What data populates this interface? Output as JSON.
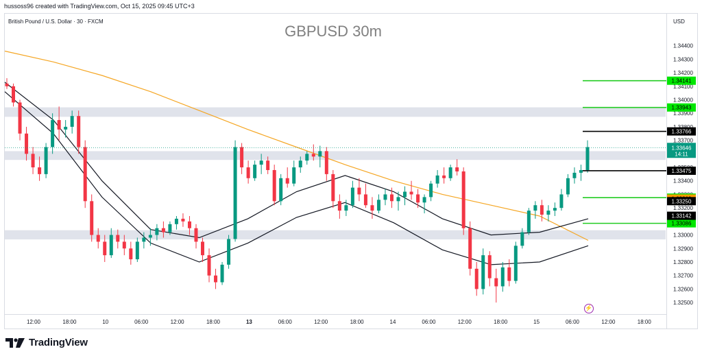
{
  "header": {
    "created_by": "hussoss96 created with TradingView.com, Oct 15, 2025 09:45 UTC+3",
    "symbol": "British Pound / U.S. Dollar · 30 · FXCM",
    "currency": "USD"
  },
  "brand": {
    "name": "TradingView"
  },
  "chart_data": {
    "type": "candlestick",
    "title": "GBPUSD 30m",
    "ylim": [
      1.32455,
      1.34525
    ],
    "y_ticks": [
      "1.34400",
      "1.34300",
      "1.34200",
      "1.34100",
      "1.34000",
      "1.33900",
      "1.33800",
      "1.33700",
      "1.33600",
      "1.33500",
      "1.33400",
      "1.33300",
      "1.33200",
      "1.33100",
      "1.33000",
      "1.32900",
      "1.32800",
      "1.32700",
      "1.32600",
      "1.32500"
    ],
    "x_ticks": [
      {
        "label": "12:00",
        "bold": false
      },
      {
        "label": "18:00",
        "bold": false
      },
      {
        "label": "10",
        "bold": false
      },
      {
        "label": "06:00",
        "bold": false
      },
      {
        "label": "12:00",
        "bold": false
      },
      {
        "label": "18:00",
        "bold": false
      },
      {
        "label": "13",
        "bold": true
      },
      {
        "label": "06:00",
        "bold": false
      },
      {
        "label": "12:00",
        "bold": false
      },
      {
        "label": "18:00",
        "bold": false
      },
      {
        "label": "14",
        "bold": false
      },
      {
        "label": "06:00",
        "bold": false
      },
      {
        "label": "12:00",
        "bold": false
      },
      {
        "label": "18:00",
        "bold": false
      },
      {
        "label": "15",
        "bold": false
      },
      {
        "label": "06:00",
        "bold": false
      },
      {
        "label": "12:00",
        "bold": false
      },
      {
        "label": "18:00",
        "bold": false
      }
    ],
    "candles": [
      [
        1.3412,
        1.3416,
        1.3408,
        1.341
      ],
      [
        1.341,
        1.3412,
        1.3395,
        1.3398
      ],
      [
        1.3398,
        1.34,
        1.337,
        1.3375
      ],
      [
        1.3375,
        1.338,
        1.3355,
        1.336
      ],
      [
        1.336,
        1.3365,
        1.3345,
        1.335
      ],
      [
        1.335,
        1.3358,
        1.334,
        1.3345
      ],
      [
        1.3345,
        1.3368,
        1.3342,
        1.3365
      ],
      [
        1.3365,
        1.339,
        1.336,
        1.3385
      ],
      [
        1.3385,
        1.3395,
        1.337,
        1.3378
      ],
      [
        1.3378,
        1.3385,
        1.3372,
        1.338
      ],
      [
        1.338,
        1.3392,
        1.3375,
        1.3388
      ],
      [
        1.3388,
        1.3392,
        1.336,
        1.3365
      ],
      [
        1.3365,
        1.337,
        1.332,
        1.3325
      ],
      [
        1.3325,
        1.333,
        1.3295,
        1.33
      ],
      [
        1.33,
        1.3305,
        1.329,
        1.3295
      ],
      [
        1.3295,
        1.33,
        1.328,
        1.3285
      ],
      [
        1.3285,
        1.3305,
        1.3283,
        1.33
      ],
      [
        1.33,
        1.3304,
        1.329,
        1.3295
      ],
      [
        1.3295,
        1.33,
        1.3285,
        1.329
      ],
      [
        1.329,
        1.3295,
        1.3278,
        1.3282
      ],
      [
        1.3282,
        1.3298,
        1.328,
        1.3295
      ],
      [
        1.3295,
        1.3302,
        1.329,
        1.3298
      ],
      [
        1.3298,
        1.3305,
        1.3292,
        1.33
      ],
      [
        1.33,
        1.3308,
        1.3296,
        1.3305
      ],
      [
        1.3305,
        1.331,
        1.3298,
        1.3302
      ],
      [
        1.3302,
        1.331,
        1.33,
        1.3308
      ],
      [
        1.3308,
        1.3314,
        1.3304,
        1.3312
      ],
      [
        1.3312,
        1.3316,
        1.3306,
        1.331
      ],
      [
        1.331,
        1.3314,
        1.33,
        1.3305
      ],
      [
        1.3305,
        1.3308,
        1.329,
        1.3295
      ],
      [
        1.3295,
        1.3298,
        1.328,
        1.3285
      ],
      [
        1.3285,
        1.329,
        1.3265,
        1.327
      ],
      [
        1.327,
        1.3275,
        1.326,
        1.3265
      ],
      [
        1.3265,
        1.328,
        1.3263,
        1.3278
      ],
      [
        1.3278,
        1.33,
        1.3275,
        1.3297
      ],
      [
        1.3297,
        1.337,
        1.3295,
        1.3365
      ],
      [
        1.3365,
        1.3368,
        1.3345,
        1.335
      ],
      [
        1.335,
        1.3355,
        1.3338,
        1.3342
      ],
      [
        1.3342,
        1.3355,
        1.334,
        1.3352
      ],
      [
        1.3352,
        1.336,
        1.3345,
        1.3355
      ],
      [
        1.3355,
        1.3358,
        1.3345,
        1.3348
      ],
      [
        1.3348,
        1.3352,
        1.3322,
        1.3325
      ],
      [
        1.3325,
        1.3345,
        1.3322,
        1.3342
      ],
      [
        1.3342,
        1.335,
        1.3335,
        1.3338
      ],
      [
        1.3338,
        1.3355,
        1.3336,
        1.335
      ],
      [
        1.335,
        1.3358,
        1.3346,
        1.3355
      ],
      [
        1.3355,
        1.3362,
        1.3352,
        1.336
      ],
      [
        1.336,
        1.3367,
        1.3355,
        1.3358
      ],
      [
        1.3358,
        1.3366,
        1.335,
        1.3362
      ],
      [
        1.3362,
        1.3365,
        1.334,
        1.3345
      ],
      [
        1.3345,
        1.3348,
        1.332,
        1.3325
      ],
      [
        1.3325,
        1.333,
        1.3312,
        1.3318
      ],
      [
        1.3318,
        1.3326,
        1.3314,
        1.3322
      ],
      [
        1.3322,
        1.334,
        1.332,
        1.3335
      ],
      [
        1.3335,
        1.3342,
        1.3325,
        1.333
      ],
      [
        1.333,
        1.3338,
        1.332,
        1.3322
      ],
      [
        1.3322,
        1.3328,
        1.3312,
        1.3318
      ],
      [
        1.3318,
        1.333,
        1.3316,
        1.3326
      ],
      [
        1.3326,
        1.3334,
        1.3322,
        1.333
      ],
      [
        1.333,
        1.3335,
        1.332,
        1.3325
      ],
      [
        1.3325,
        1.3332,
        1.3318,
        1.3328
      ],
      [
        1.3328,
        1.3336,
        1.3322,
        1.3332
      ],
      [
        1.3332,
        1.334,
        1.3326,
        1.333
      ],
      [
        1.333,
        1.3334,
        1.332,
        1.3324
      ],
      [
        1.3324,
        1.333,
        1.3316,
        1.3328
      ],
      [
        1.3328,
        1.334,
        1.3325,
        1.3338
      ],
      [
        1.3338,
        1.3348,
        1.3335,
        1.3344
      ],
      [
        1.3344,
        1.335,
        1.3338,
        1.3342
      ],
      [
        1.3342,
        1.3352,
        1.334,
        1.335
      ],
      [
        1.335,
        1.3356,
        1.3344,
        1.3347
      ],
      [
        1.3347,
        1.335,
        1.33,
        1.3305
      ],
      [
        1.3305,
        1.331,
        1.327,
        1.3275
      ],
      [
        1.3275,
        1.328,
        1.3255,
        1.326
      ],
      [
        1.326,
        1.329,
        1.3256,
        1.3285
      ],
      [
        1.3285,
        1.3288,
        1.3262,
        1.3268
      ],
      [
        1.3268,
        1.3275,
        1.325,
        1.3262
      ],
      [
        1.3262,
        1.328,
        1.3258,
        1.3276
      ],
      [
        1.3276,
        1.3282,
        1.3262,
        1.3266
      ],
      [
        1.3266,
        1.3295,
        1.3264,
        1.3292
      ],
      [
        1.3292,
        1.3305,
        1.329,
        1.3302
      ],
      [
        1.3302,
        1.332,
        1.33,
        1.3318
      ],
      [
        1.3318,
        1.3325,
        1.3312,
        1.3322
      ],
      [
        1.3322,
        1.3326,
        1.331,
        1.3315
      ],
      [
        1.3315,
        1.3322,
        1.331,
        1.3318
      ],
      [
        1.3318,
        1.3324,
        1.3314,
        1.332
      ],
      [
        1.332,
        1.3334,
        1.3318,
        1.333
      ],
      [
        1.333,
        1.3345,
        1.3328,
        1.3342
      ],
      [
        1.3342,
        1.335,
        1.3338,
        1.3346
      ],
      [
        1.3346,
        1.3352,
        1.334,
        1.3348
      ],
      [
        1.3348,
        1.337,
        1.3346,
        1.3365
      ]
    ],
    "ema_200": [
      1.3436,
      1.3428,
      1.3418,
      1.3406,
      1.3392,
      1.3378,
      1.3365,
      1.3352,
      1.334,
      1.333,
      1.3322,
      1.3314,
      1.3296
    ],
    "channel_upper": [
      1.3413,
      1.3385,
      1.334,
      1.3304,
      1.3298,
      1.3312,
      1.3332,
      1.3344,
      1.3332,
      1.3312,
      1.33,
      1.3302,
      1.3312
    ],
    "channel_lower": [
      1.3406,
      1.3375,
      1.3328,
      1.3294,
      1.328,
      1.3294,
      1.3313,
      1.3324,
      1.3309,
      1.3289,
      1.3278,
      1.328,
      1.3292
    ],
    "zones": [
      [
        1.33874,
        1.33944
      ],
      [
        1.33555,
        1.3362
      ],
      [
        1.32967,
        1.33035
      ]
    ],
    "levels": [
      {
        "value": 1.34141,
        "color": "#22cc22",
        "label": "1.34141",
        "label_bg": "#00e600",
        "text_color": "#000000"
      },
      {
        "value": 1.33943,
        "color": "#22cc22",
        "label": "1.33943",
        "label_bg": "#00e600",
        "text_color": "#000000"
      },
      {
        "value": 1.33766,
        "color": "#000000",
        "label": "1.33766",
        "label_bg": "#000000",
        "text_color": "#ffffff"
      },
      {
        "value": 1.33475,
        "color": "#000000",
        "label": "1.33475",
        "label_bg": "#000000",
        "text_color": "#ffffff"
      },
      {
        "value": 1.33276,
        "color": "#22cc22",
        "label": "1.33276",
        "label_bg": "#00e600",
        "text_color": "#000000"
      },
      {
        "value": 1.33086,
        "color": "#22cc22",
        "label": "1.33086",
        "label_bg": "#00e600",
        "text_color": "#000000"
      }
    ],
    "axis_labels": [
      {
        "value": 1.33269,
        "label": "1.33269",
        "bg": "#ff9800",
        "color": "#000000"
      },
      {
        "value": 1.3325,
        "label": "1.33250",
        "bg": "#000000",
        "color": "#ffffff"
      },
      {
        "value": 1.33142,
        "label": "1.33142",
        "bg": "#000000",
        "color": "#ffffff"
      }
    ],
    "current_price": {
      "value": 1.33646,
      "label": "1.33646",
      "countdown": "14:11",
      "bg": "#089981"
    },
    "colors": {
      "up": "#089981",
      "down": "#f23645",
      "ema": "#f5a623",
      "channel": "#131722",
      "zone": "#e0e3eb"
    }
  }
}
